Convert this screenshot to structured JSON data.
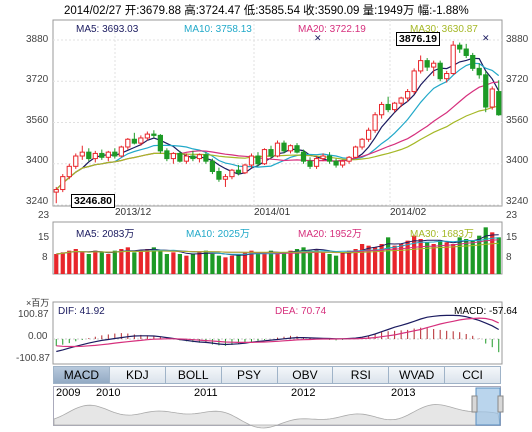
{
  "header": {
    "date": "2014/02/27",
    "open": "开:3679.88",
    "high": "高:3724.47",
    "low": "低:3585.54",
    "close": "收:3590.09",
    "volume": "量:1949万",
    "change": "幅:-1.88%"
  },
  "main_chart": {
    "ma5": "MA5: 3693.03",
    "ma10": "MA10: 3758.13",
    "ma20": "MA20: 3722.19",
    "ma30": "MA30: 3630.87",
    "ma_colors": {
      "ma5": "#1b1b60",
      "ma10": "#22a9c9",
      "ma20": "#d6307d",
      "ma30": "#a5b826"
    },
    "high_label": "3876.19",
    "low_label": "3246.80",
    "y_ticks": [
      "3880",
      "3720",
      "3560",
      "3400",
      "3240"
    ],
    "x_labels": [
      "2013/12",
      "2014/01",
      "2014/02"
    ],
    "up_color": "#e8262b",
    "down_color": "#1d9a26"
  },
  "volume_chart": {
    "ma5": "MA5: 2083万",
    "ma10": "MA10: 2025万",
    "ma20": "MA20: 1952万",
    "ma30": "MA30: 1683万",
    "y_ticks": [
      "23",
      "15",
      "8"
    ],
    "unit": "×百万"
  },
  "macd_chart": {
    "dif": "DIF: 41.92",
    "dea": "DEA: 70.74",
    "macd": "MACD: -57.64",
    "y_ticks": [
      "100.87",
      "0.00",
      "-100.87"
    ]
  },
  "tabs": [
    "MACD",
    "KDJ",
    "BOLL",
    "PSY",
    "OBV",
    "RSI",
    "WVAD",
    "CCI"
  ],
  "navigator": {
    "years": [
      "2009",
      "2010",
      "2011",
      "2012",
      "2013"
    ]
  },
  "chart_data": {
    "type": "candlestick",
    "title": "",
    "y_range": [
      3240,
      3880
    ],
    "candles": [
      {
        "o": 3290,
        "h": 3310,
        "l": 3247,
        "c": 3300
      },
      {
        "o": 3300,
        "h": 3360,
        "l": 3290,
        "c": 3350
      },
      {
        "o": 3350,
        "h": 3400,
        "l": 3340,
        "c": 3390
      },
      {
        "o": 3390,
        "h": 3440,
        "l": 3380,
        "c": 3430
      },
      {
        "o": 3430,
        "h": 3470,
        "l": 3415,
        "c": 3445
      },
      {
        "o": 3445,
        "h": 3460,
        "l": 3410,
        "c": 3420
      },
      {
        "o": 3420,
        "h": 3450,
        "l": 3405,
        "c": 3440
      },
      {
        "o": 3440,
        "h": 3455,
        "l": 3415,
        "c": 3425
      },
      {
        "o": 3425,
        "h": 3450,
        "l": 3410,
        "c": 3445
      },
      {
        "o": 3445,
        "h": 3460,
        "l": 3420,
        "c": 3430
      },
      {
        "o": 3430,
        "h": 3470,
        "l": 3425,
        "c": 3465
      },
      {
        "o": 3465,
        "h": 3500,
        "l": 3455,
        "c": 3495
      },
      {
        "o": 3495,
        "h": 3520,
        "l": 3475,
        "c": 3480
      },
      {
        "o": 3480,
        "h": 3510,
        "l": 3470,
        "c": 3500
      },
      {
        "o": 3500,
        "h": 3525,
        "l": 3490,
        "c": 3515
      },
      {
        "o": 3515,
        "h": 3530,
        "l": 3500,
        "c": 3510
      },
      {
        "o": 3510,
        "h": 3515,
        "l": 3440,
        "c": 3450
      },
      {
        "o": 3450,
        "h": 3460,
        "l": 3410,
        "c": 3420
      },
      {
        "o": 3420,
        "h": 3445,
        "l": 3400,
        "c": 3440
      },
      {
        "o": 3440,
        "h": 3450,
        "l": 3405,
        "c": 3410
      },
      {
        "o": 3410,
        "h": 3440,
        "l": 3400,
        "c": 3430
      },
      {
        "o": 3430,
        "h": 3450,
        "l": 3410,
        "c": 3420
      },
      {
        "o": 3420,
        "h": 3440,
        "l": 3405,
        "c": 3435
      },
      {
        "o": 3435,
        "h": 3445,
        "l": 3400,
        "c": 3410
      },
      {
        "o": 3410,
        "h": 3420,
        "l": 3360,
        "c": 3370
      },
      {
        "o": 3370,
        "h": 3385,
        "l": 3330,
        "c": 3340
      },
      {
        "o": 3340,
        "h": 3360,
        "l": 3310,
        "c": 3350
      },
      {
        "o": 3350,
        "h": 3380,
        "l": 3340,
        "c": 3375
      },
      {
        "o": 3375,
        "h": 3395,
        "l": 3355,
        "c": 3365
      },
      {
        "o": 3365,
        "h": 3400,
        "l": 3360,
        "c": 3395
      },
      {
        "o": 3395,
        "h": 3440,
        "l": 3385,
        "c": 3430
      },
      {
        "o": 3430,
        "h": 3445,
        "l": 3390,
        "c": 3400
      },
      {
        "o": 3400,
        "h": 3460,
        "l": 3395,
        "c": 3455
      },
      {
        "o": 3455,
        "h": 3470,
        "l": 3420,
        "c": 3430
      },
      {
        "o": 3430,
        "h": 3490,
        "l": 3425,
        "c": 3480
      },
      {
        "o": 3480,
        "h": 3490,
        "l": 3440,
        "c": 3450
      },
      {
        "o": 3450,
        "h": 3475,
        "l": 3440,
        "c": 3470
      },
      {
        "o": 3470,
        "h": 3480,
        "l": 3440,
        "c": 3445
      },
      {
        "o": 3445,
        "h": 3455,
        "l": 3400,
        "c": 3410
      },
      {
        "o": 3410,
        "h": 3425,
        "l": 3380,
        "c": 3390
      },
      {
        "o": 3390,
        "h": 3430,
        "l": 3380,
        "c": 3420
      },
      {
        "o": 3420,
        "h": 3440,
        "l": 3410,
        "c": 3430
      },
      {
        "o": 3430,
        "h": 3445,
        "l": 3400,
        "c": 3410
      },
      {
        "o": 3410,
        "h": 3420,
        "l": 3385,
        "c": 3395
      },
      {
        "o": 3395,
        "h": 3415,
        "l": 3385,
        "c": 3410
      },
      {
        "o": 3410,
        "h": 3430,
        "l": 3400,
        "c": 3425
      },
      {
        "o": 3425,
        "h": 3470,
        "l": 3420,
        "c": 3465
      },
      {
        "o": 3465,
        "h": 3500,
        "l": 3455,
        "c": 3495
      },
      {
        "o": 3495,
        "h": 3540,
        "l": 3485,
        "c": 3530
      },
      {
        "o": 3530,
        "h": 3600,
        "l": 3520,
        "c": 3590
      },
      {
        "o": 3590,
        "h": 3640,
        "l": 3575,
        "c": 3630
      },
      {
        "o": 3630,
        "h": 3660,
        "l": 3600,
        "c": 3610
      },
      {
        "o": 3610,
        "h": 3640,
        "l": 3600,
        "c": 3635
      },
      {
        "o": 3635,
        "h": 3660,
        "l": 3620,
        "c": 3655
      },
      {
        "o": 3655,
        "h": 3690,
        "l": 3640,
        "c": 3680
      },
      {
        "o": 3680,
        "h": 3770,
        "l": 3670,
        "c": 3760
      },
      {
        "o": 3760,
        "h": 3820,
        "l": 3750,
        "c": 3800
      },
      {
        "o": 3800,
        "h": 3810,
        "l": 3760,
        "c": 3775
      },
      {
        "o": 3775,
        "h": 3800,
        "l": 3740,
        "c": 3790
      },
      {
        "o": 3790,
        "h": 3800,
        "l": 3720,
        "c": 3730
      },
      {
        "o": 3730,
        "h": 3760,
        "l": 3715,
        "c": 3750
      },
      {
        "o": 3750,
        "h": 3876,
        "l": 3745,
        "c": 3860
      },
      {
        "o": 3860,
        "h": 3870,
        "l": 3830,
        "c": 3845
      },
      {
        "o": 3845,
        "h": 3865,
        "l": 3810,
        "c": 3820
      },
      {
        "o": 3820,
        "h": 3830,
        "l": 3760,
        "c": 3770
      },
      {
        "o": 3770,
        "h": 3790,
        "l": 3730,
        "c": 3745
      },
      {
        "o": 3745,
        "h": 3760,
        "l": 3600,
        "c": 3620
      },
      {
        "o": 3620,
        "h": 3700,
        "l": 3610,
        "c": 3690
      },
      {
        "o": 3680,
        "h": 3724,
        "l": 3586,
        "c": 3590
      }
    ],
    "volume_range": [
      0,
      30
    ],
    "volume": [
      12,
      13,
      14,
      15,
      13,
      12,
      14,
      13,
      12,
      14,
      15,
      16,
      13,
      14,
      15,
      16,
      14,
      12,
      13,
      12,
      11,
      12,
      13,
      14,
      12,
      11,
      10,
      11,
      12,
      13,
      14,
      12,
      13,
      14,
      12,
      13,
      14,
      15,
      16,
      14,
      15,
      13,
      12,
      11,
      13,
      14,
      15,
      18,
      17,
      16,
      18,
      22,
      17,
      18,
      20,
      23,
      21,
      19,
      18,
      20,
      19,
      18,
      22,
      21,
      20,
      23,
      28,
      25,
      22
    ],
    "macd_range": [
      -110,
      110
    ],
    "macd_hist": [
      -30,
      -25,
      -18,
      -10,
      -4,
      4,
      10,
      16,
      20,
      24,
      26,
      24,
      20,
      18,
      16,
      14,
      10,
      4,
      -2,
      -6,
      -10,
      -14,
      -16,
      -18,
      -24,
      -28,
      -30,
      -26,
      -22,
      -18,
      -12,
      -8,
      -4,
      0,
      6,
      10,
      14,
      12,
      8,
      4,
      0,
      -2,
      -4,
      -6,
      -4,
      -2,
      2,
      8,
      14,
      22,
      30,
      34,
      36,
      38,
      40,
      46,
      50,
      48,
      44,
      40,
      36,
      34,
      30,
      22,
      14,
      2,
      -20,
      -36,
      -58
    ],
    "dif": [
      -55,
      -48,
      -40,
      -32,
      -25,
      -18,
      -12,
      -6,
      -2,
      2,
      6,
      10,
      13,
      14,
      14,
      13,
      10,
      6,
      2,
      -2,
      -6,
      -10,
      -13,
      -15,
      -18,
      -22,
      -24,
      -23,
      -21,
      -18,
      -14,
      -11,
      -8,
      -5,
      -2,
      1,
      4,
      6,
      6,
      5,
      4,
      3,
      2,
      1,
      1,
      2,
      4,
      8,
      14,
      22,
      32,
      42,
      52,
      60,
      68,
      78,
      88,
      96,
      100,
      103,
      104,
      104,
      103,
      98,
      90,
      82,
      70,
      58,
      42
    ],
    "dea": [
      -30,
      -32,
      -33,
      -33,
      -32,
      -30,
      -28,
      -25,
      -22,
      -18,
      -15,
      -12,
      -9,
      -6,
      -3,
      -1,
      0,
      1,
      1,
      0,
      -1,
      -3,
      -5,
      -7,
      -9,
      -11,
      -13,
      -14,
      -15,
      -15,
      -15,
      -14,
      -13,
      -12,
      -10,
      -8,
      -6,
      -4,
      -3,
      -2,
      -1,
      0,
      0,
      0,
      1,
      1,
      1,
      2,
      4,
      6,
      10,
      14,
      18,
      24,
      30,
      36,
      42,
      50,
      58,
      66,
      72,
      78,
      84,
      88,
      90,
      92,
      90,
      84,
      71
    ]
  }
}
